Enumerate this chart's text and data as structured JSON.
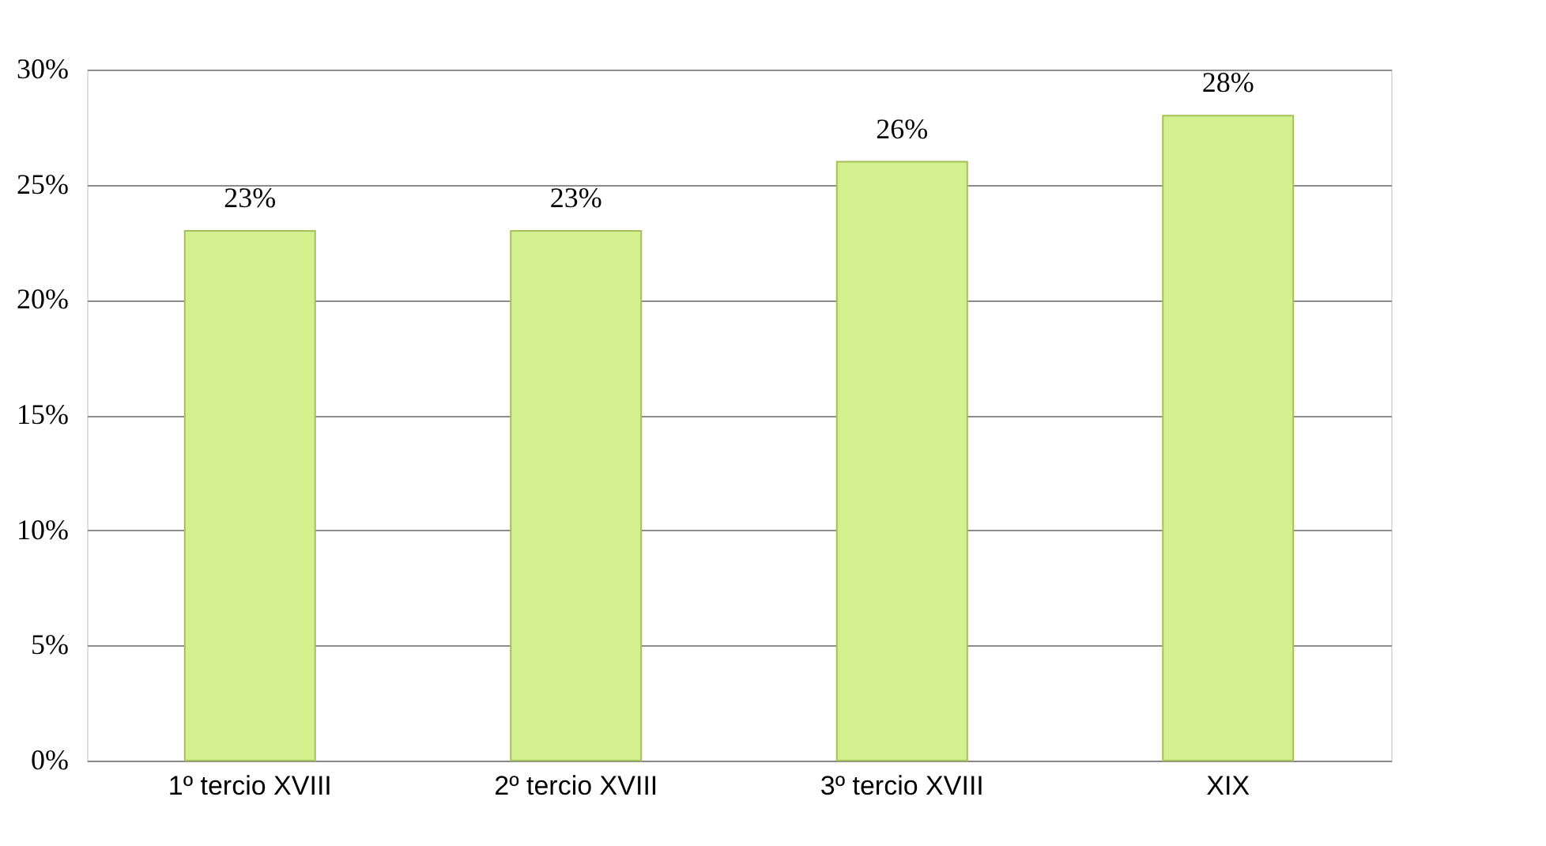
{
  "chart_data": {
    "type": "bar",
    "categories": [
      "1º tercio XVIII",
      "2º tercio XVIII",
      "3º tercio XVIII",
      "XIX"
    ],
    "values": [
      23,
      23,
      26,
      28
    ],
    "color": "#d4ef8e",
    "value_labels": [
      "23%",
      "23%",
      "26%",
      "28%"
    ],
    "ylim": [
      0,
      30
    ],
    "yticks": [
      {
        "value": 0,
        "label": "0%"
      },
      {
        "value": 5,
        "label": "5%"
      },
      {
        "value": 10,
        "label": "10%"
      },
      {
        "value": 15,
        "label": "15%"
      },
      {
        "value": 20,
        "label": "20%"
      },
      {
        "value": 25,
        "label": "25%"
      },
      {
        "value": 30,
        "label": "30%"
      }
    ],
    "grid": "y"
  }
}
